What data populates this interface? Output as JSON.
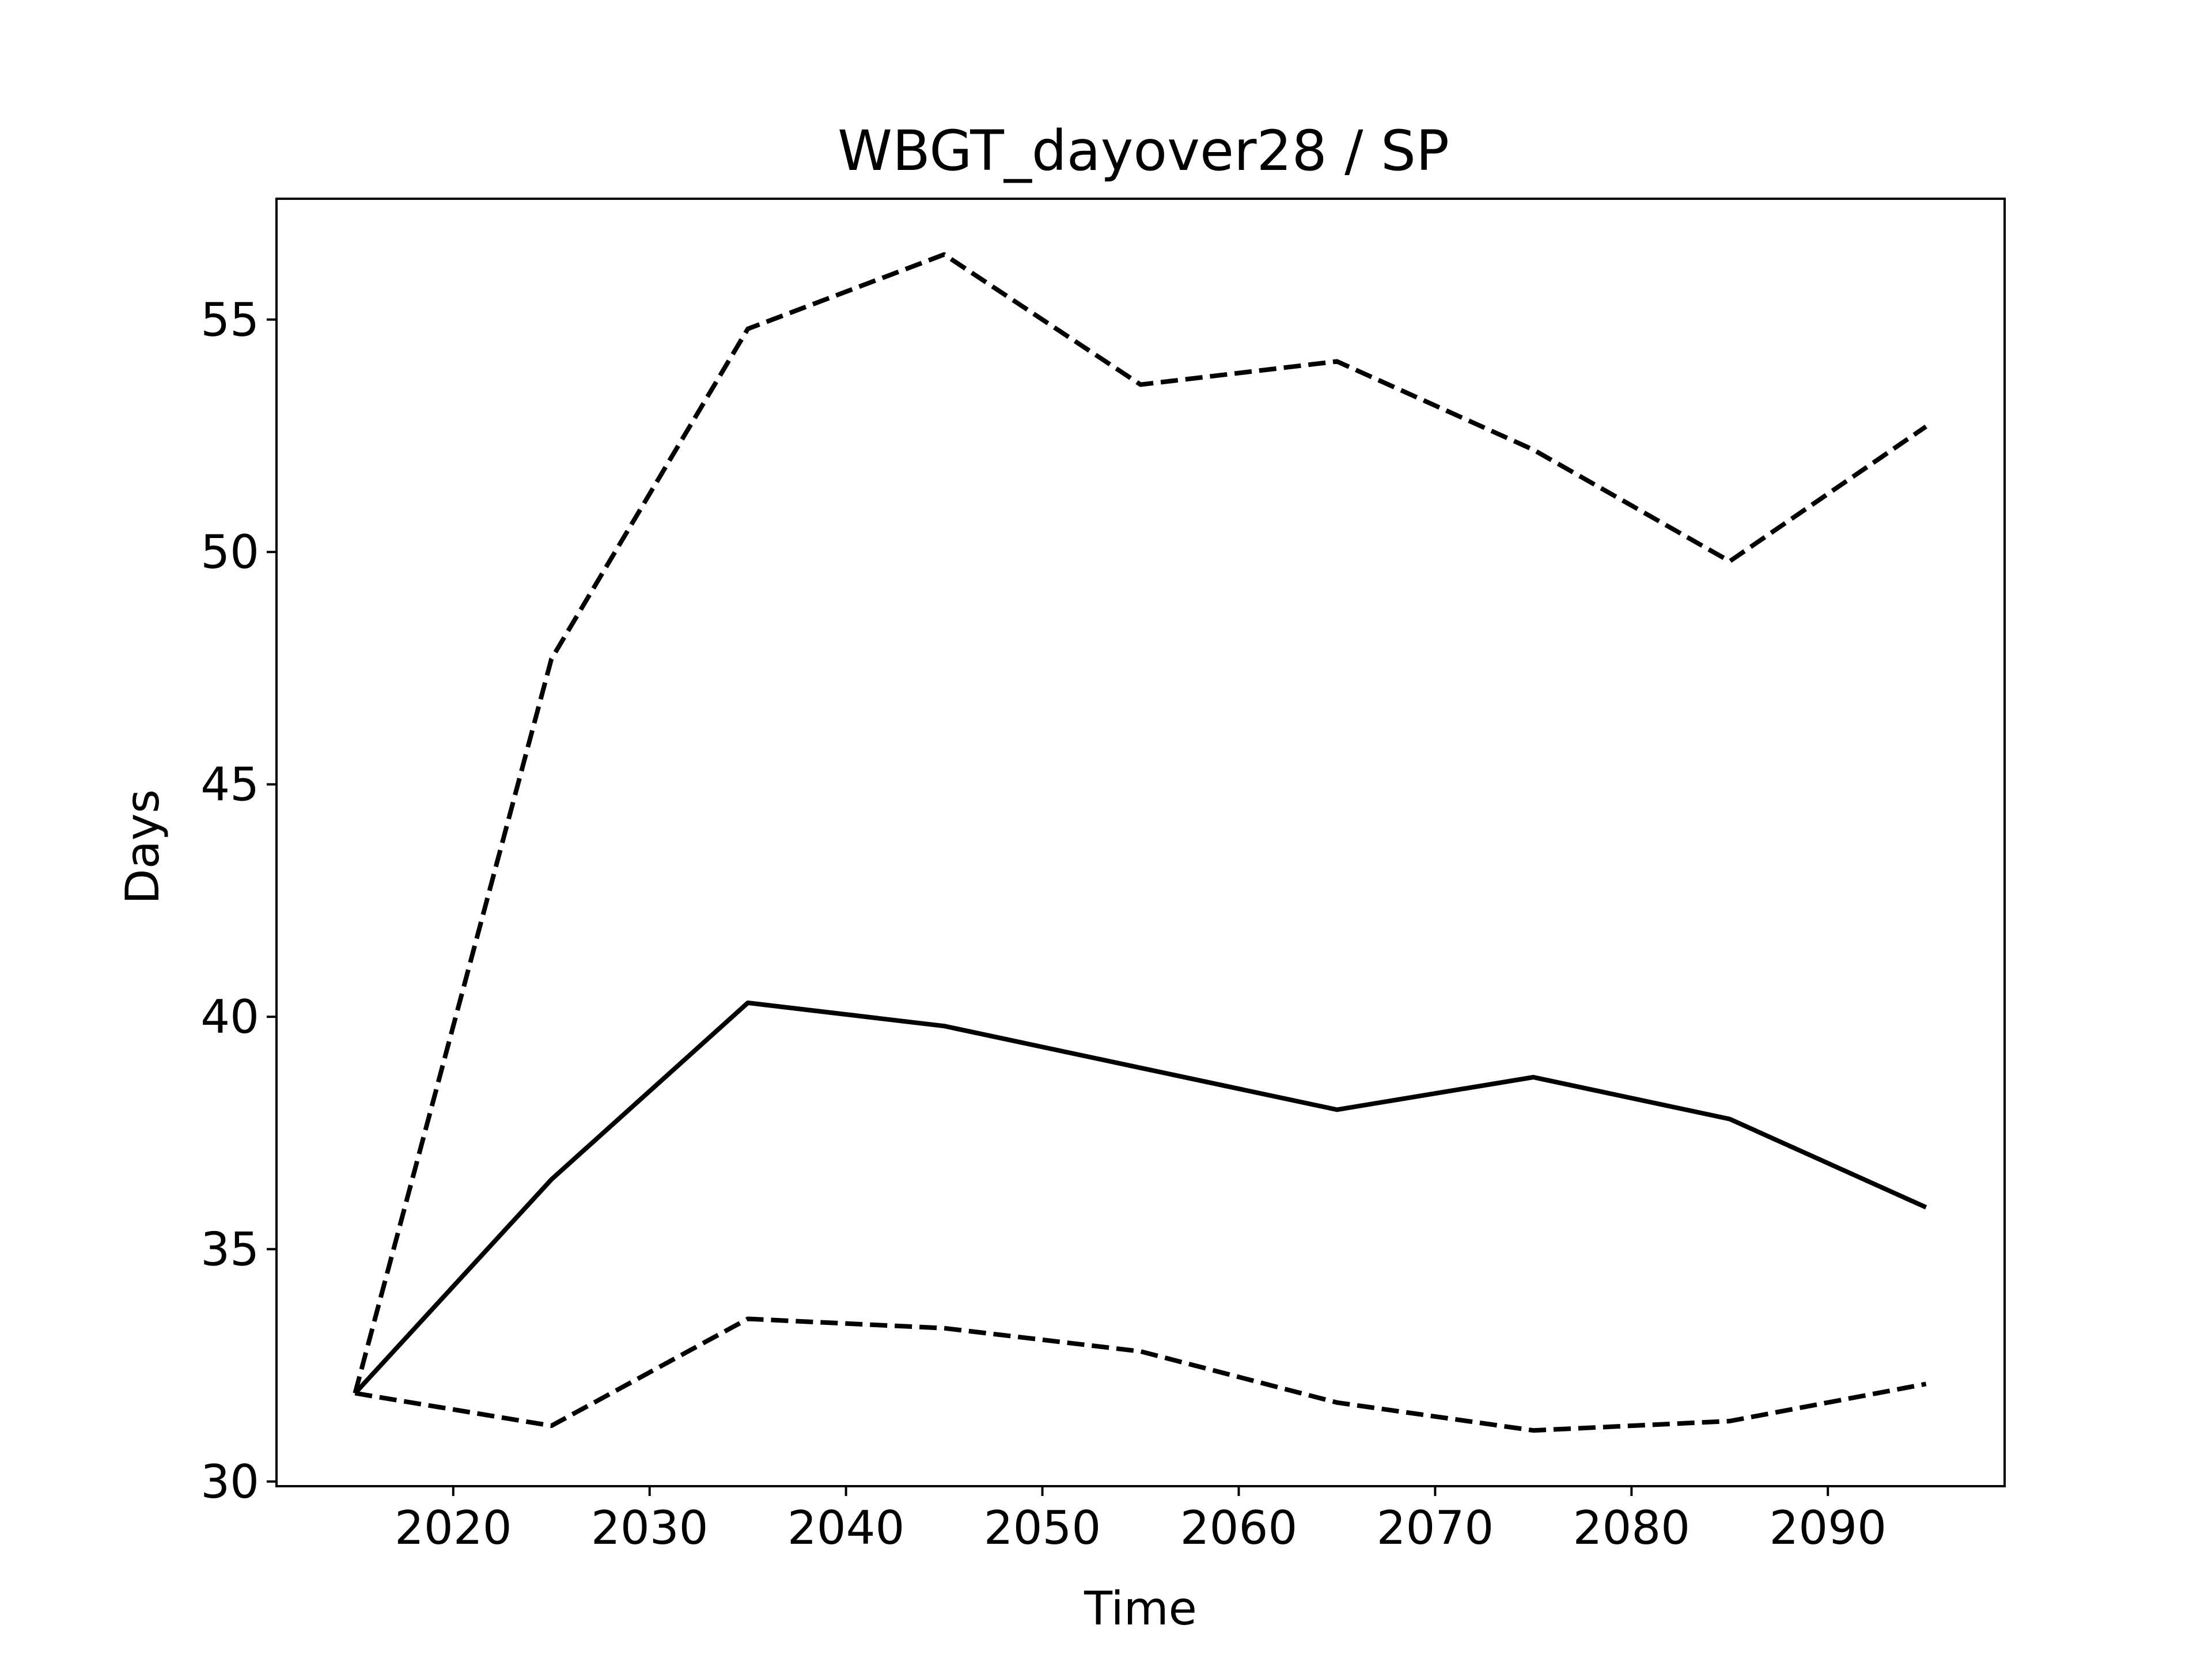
{
  "chart_data": {
    "type": "line",
    "title": "WBGT_dayover28 / SP",
    "xlabel": "Time",
    "ylabel": "Days",
    "xlim": [
      2011,
      2099
    ],
    "ylim": [
      29.9,
      57.6
    ],
    "x_ticks": [
      2020,
      2030,
      2040,
      2050,
      2060,
      2070,
      2080,
      2090
    ],
    "y_ticks": [
      30,
      35,
      40,
      45,
      50,
      55
    ],
    "grid": false,
    "legend": "none",
    "x": [
      2015,
      2025,
      2035,
      2045,
      2055,
      2065,
      2075,
      2085,
      2095
    ],
    "series": [
      {
        "style": "dashed",
        "color": "#000000",
        "values": [
          31.9,
          47.7,
          54.8,
          56.4,
          53.6,
          54.1,
          52.2,
          49.8,
          52.7
        ]
      },
      {
        "style": "solid",
        "color": "#000000",
        "values": [
          31.9,
          36.5,
          40.3,
          39.8,
          38.9,
          38.0,
          38.7,
          37.8,
          35.9
        ]
      },
      {
        "style": "dashed",
        "color": "#000000",
        "values": [
          31.9,
          31.2,
          33.5,
          33.3,
          32.8,
          31.7,
          31.1,
          31.3,
          32.1
        ]
      }
    ]
  }
}
